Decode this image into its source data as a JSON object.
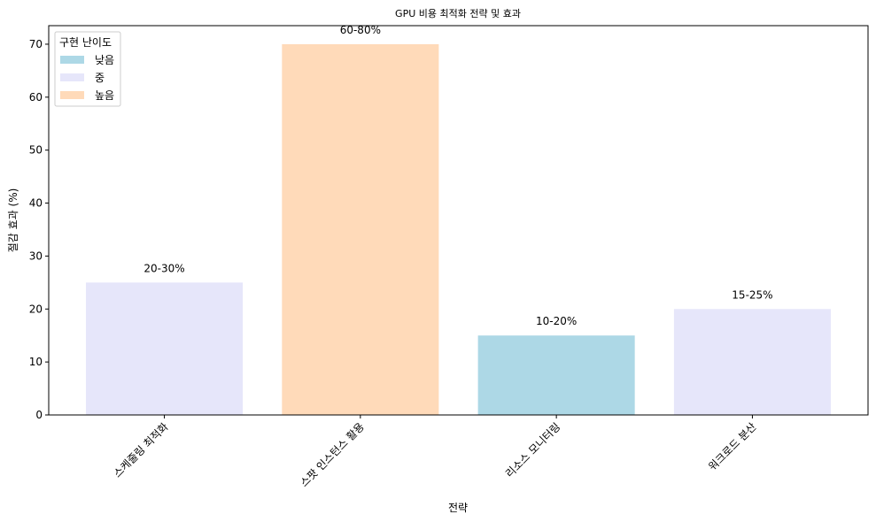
{
  "chart_data": {
    "type": "bar",
    "title": "GPU 비용 최적화 전략 및 효과",
    "xlabel": "전략",
    "ylabel": "절감 효과 (%)",
    "categories": [
      "스케줄링 최적화",
      "스팟 인스턴스 활용",
      "리소스 모니터링",
      "워크로드 분산"
    ],
    "values": [
      25,
      70,
      15,
      20
    ],
    "data_labels": [
      "20-30%",
      "60-80%",
      "10-20%",
      "15-25%"
    ],
    "difficulty": [
      "중",
      "높음",
      "낮음",
      "중"
    ],
    "ylim": [
      0,
      73.5
    ],
    "yticks": [
      0,
      10,
      20,
      30,
      40,
      50,
      60,
      70
    ],
    "grid": false,
    "legend": {
      "title": "구현 난이도",
      "placement": "top-left",
      "entries": [
        {
          "label": "낮음",
          "color": "#add8e6"
        },
        {
          "label": "중",
          "color": "#e6e6fa"
        },
        {
          "label": "높음",
          "color": "#ffdab9"
        }
      ]
    }
  }
}
